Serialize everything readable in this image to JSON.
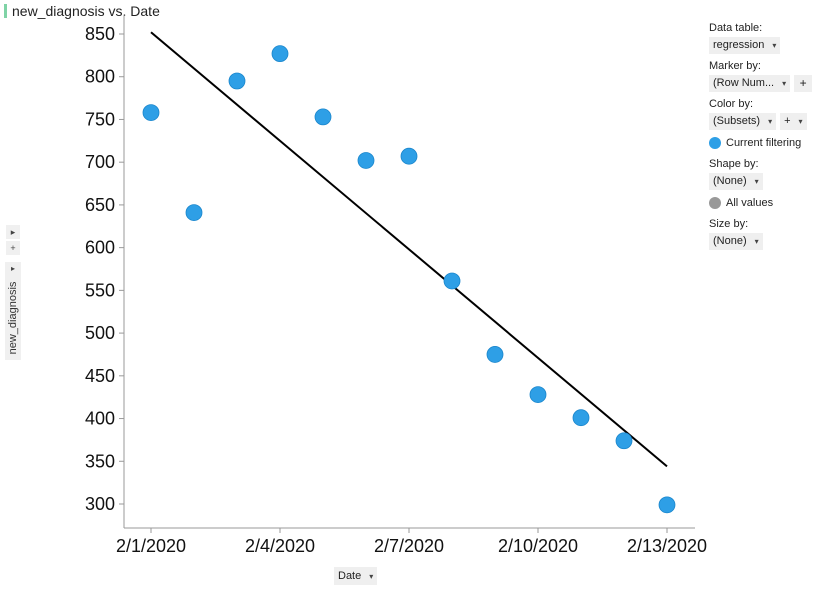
{
  "header": {
    "title": "new_diagnosis vs. Date"
  },
  "left_tools": {
    "expand_icon": "▸",
    "add_icon": "+",
    "axis_arrow": "▸"
  },
  "yaxis_selector": {
    "label": "new_diagnosis"
  },
  "xaxis_selector": {
    "label": "Date",
    "arrow": "▾"
  },
  "panel": {
    "data_table_label": "Data table:",
    "data_table_value": "regression",
    "marker_by_label": "Marker by:",
    "marker_by_value": "(Row Num...",
    "color_by_label": "Color by:",
    "color_by_value": "(Subsets)",
    "color_legend_item": "Current filtering",
    "shape_by_label": "Shape by:",
    "shape_by_value": "(None)",
    "shape_legend_item": "All values",
    "size_by_label": "Size by:",
    "size_by_value": "(None)",
    "arrow": "▾",
    "plus": "+"
  },
  "colors": {
    "marker": "#2e9fe6",
    "marker_stroke": "#1a86cc",
    "line": "#000000",
    "axis": "#999999",
    "legend_shape": "#999999"
  },
  "chart_data": {
    "type": "scatter",
    "title": "new_diagnosis vs. Date",
    "xlabel": "Date",
    "ylabel": "new_diagnosis",
    "x": [
      "2020-02-01",
      "2020-02-02",
      "2020-02-03",
      "2020-02-04",
      "2020-02-05",
      "2020-02-06",
      "2020-02-07",
      "2020-02-08",
      "2020-02-09",
      "2020-02-10",
      "2020-02-11",
      "2020-02-12",
      "2020-02-13"
    ],
    "y": [
      758,
      641,
      795,
      827,
      753,
      702,
      707,
      561,
      475,
      428,
      401,
      374,
      299
    ],
    "regression_line": {
      "x": [
        "2020-02-01",
        "2020-02-13"
      ],
      "y": [
        852,
        344
      ]
    },
    "x_ticks": [
      "2/1/2020",
      "2/4/2020",
      "2/7/2020",
      "2/10/2020",
      "2/13/2020"
    ],
    "y_ticks": [
      300,
      350,
      400,
      450,
      500,
      550,
      600,
      650,
      700,
      750,
      800,
      850
    ],
    "ylim": [
      270,
      870
    ],
    "grid": false,
    "legend": "right-panel"
  }
}
